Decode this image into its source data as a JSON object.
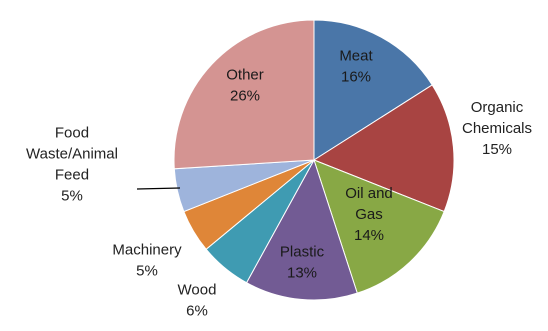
{
  "chart_data": {
    "type": "pie",
    "title": "",
    "slices": [
      {
        "label": "Meat",
        "value": 16,
        "display": "16%",
        "color": "#4a76a8"
      },
      {
        "label": "Organic Chemicals",
        "value": 15,
        "display": "15%",
        "color": "#a84442"
      },
      {
        "label": "Oil and Gas",
        "value": 14,
        "display": "14%",
        "color": "#88a845"
      },
      {
        "label": "Plastic",
        "value": 13,
        "display": "13%",
        "color": "#725b94"
      },
      {
        "label": "Wood",
        "value": 6,
        "display": "6%",
        "color": "#3f9bb2"
      },
      {
        "label": "Machinery",
        "value": 5,
        "display": "5%",
        "color": "#df8638"
      },
      {
        "label": "Food Waste/Animal Feed",
        "value": 5,
        "display": "5%",
        "color": "#9eb4dc"
      },
      {
        "label": "Other",
        "value": 26,
        "display": "26%",
        "color": "#d49492"
      }
    ],
    "label_lines": {
      "Meat": [
        "Meat",
        "16%"
      ],
      "Organic Chemicals": [
        "Organic",
        "Chemicals",
        "15%"
      ],
      "Oil and Gas": [
        "Oil and",
        "Gas",
        "14%"
      ],
      "Plastic": [
        "Plastic",
        "13%"
      ],
      "Wood": [
        "Wood",
        "6%"
      ],
      "Machinery": [
        "Machinery",
        "5%"
      ],
      "Food Waste/Animal Feed": [
        "Food",
        "Waste/Animal",
        "Feed",
        "5%"
      ],
      "Other": [
        "Other",
        "26%"
      ]
    }
  }
}
